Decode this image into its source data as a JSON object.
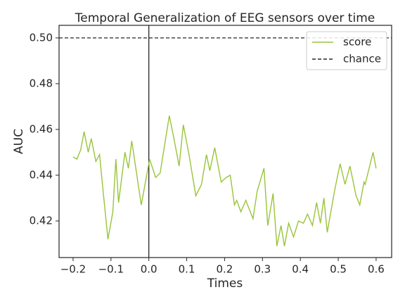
{
  "chart_data": {
    "type": "line",
    "title": "Temporal Generalization of EEG sensors over time",
    "x_label": "Times",
    "y_label": "AUC",
    "x": [
      -0.2,
      -0.19,
      -0.18,
      -0.171,
      -0.16,
      -0.152,
      -0.14,
      -0.13,
      -0.12,
      -0.108,
      -0.095,
      -0.087,
      -0.08,
      -0.063,
      -0.054,
      -0.045,
      -0.02,
      0.002,
      0.018,
      0.03,
      0.054,
      0.065,
      0.08,
      0.091,
      0.106,
      0.124,
      0.139,
      0.152,
      0.161,
      0.174,
      0.191,
      0.204,
      0.215,
      0.226,
      0.232,
      0.243,
      0.256,
      0.275,
      0.286,
      0.304,
      0.314,
      0.328,
      0.338,
      0.349,
      0.358,
      0.369,
      0.382,
      0.395,
      0.408,
      0.419,
      0.432,
      0.443,
      0.453,
      0.462,
      0.471,
      0.49,
      0.505,
      0.518,
      0.531,
      0.547,
      0.557,
      0.568,
      0.571,
      0.592,
      0.6
    ],
    "series": [
      {
        "name": "score",
        "color": "#9ac43a",
        "values": [
          0.448,
          0.447,
          0.451,
          0.459,
          0.45,
          0.456,
          0.446,
          0.449,
          0.432,
          0.412,
          0.424,
          0.447,
          0.428,
          0.45,
          0.443,
          0.455,
          0.427,
          0.447,
          0.439,
          0.441,
          0.466,
          0.457,
          0.444,
          0.462,
          0.449,
          0.431,
          0.436,
          0.449,
          0.442,
          0.452,
          0.437,
          0.439,
          0.44,
          0.427,
          0.429,
          0.424,
          0.429,
          0.421,
          0.433,
          0.443,
          0.418,
          0.432,
          0.409,
          0.418,
          0.409,
          0.419,
          0.413,
          0.42,
          0.419,
          0.423,
          0.418,
          0.428,
          0.419,
          0.43,
          0.415,
          0.433,
          0.445,
          0.436,
          0.444,
          0.431,
          0.427,
          0.437,
          0.436,
          0.45,
          0.443
        ]
      },
      {
        "name": "chance",
        "color": "#262626",
        "dashed": true,
        "hline": 0.5
      }
    ],
    "vline": 0,
    "xlim": [
      -0.237,
      0.641
    ],
    "ylim": [
      0.404,
      0.5055
    ],
    "xticks": [
      {
        "value": -0.2,
        "label": "−0.2"
      },
      {
        "value": -0.1,
        "label": "−0.1"
      },
      {
        "value": 0,
        "label": "0.0"
      },
      0.1,
      0.2,
      0.3,
      0.4,
      0.5,
      0.6
    ],
    "yticks": [
      0.42,
      0.44,
      0.46,
      0.48,
      {
        "value": 0.5,
        "label": "0.50"
      }
    ],
    "legend": "upper right"
  }
}
